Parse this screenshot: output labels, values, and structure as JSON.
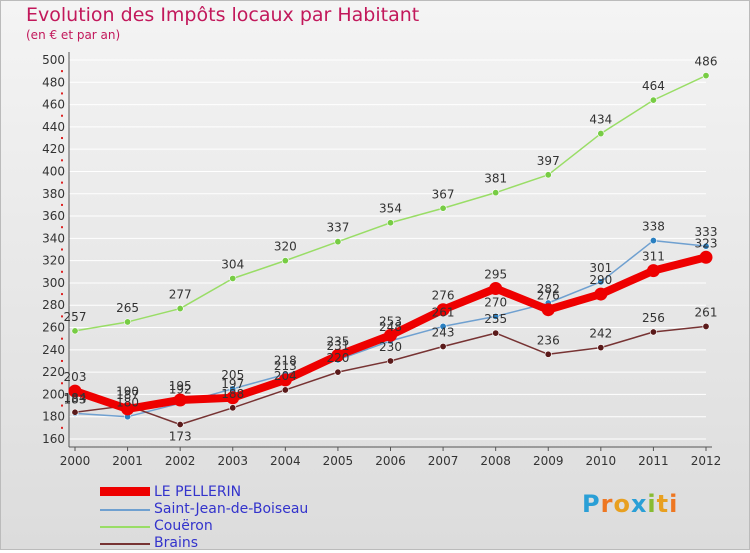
{
  "title": "Evolution des Impôts locaux par Habitant",
  "subtitle": "(en € et par an)",
  "logo_text": "Proxiti",
  "colors": {
    "title": "#c2185b",
    "legend_text": "#3333cc",
    "axis": "#555555"
  },
  "chart_data": {
    "type": "line",
    "x": [
      2000,
      2001,
      2002,
      2003,
      2004,
      2005,
      2006,
      2007,
      2008,
      2009,
      2010,
      2011,
      2012
    ],
    "categories": [
      "2000",
      "2001",
      "2002",
      "2003",
      "2004",
      "2005",
      "2006",
      "2007",
      "2008",
      "2009",
      "2010",
      "2011",
      "2012"
    ],
    "ylim": [
      160,
      500
    ],
    "yticks": [
      160,
      180,
      200,
      220,
      240,
      260,
      280,
      300,
      320,
      340,
      360,
      380,
      400,
      420,
      440,
      460,
      480,
      500
    ],
    "title": "Evolution des Impôts locaux par Habitant",
    "ylabel": "(en € et par an)",
    "legend_position": "bottom-left",
    "series": [
      {
        "name": "Saint-Jean-de-Boiseau",
        "color": "#6fa0d0",
        "marker": "#2a7fc0",
        "thick": false,
        "values": [
          183,
          180,
          192,
          205,
          218,
          231,
          248,
          261,
          270,
          282,
          301,
          338,
          333
        ]
      },
      {
        "name": "Couëron",
        "color": "#99dd66",
        "marker": "#77cc44",
        "thick": false,
        "values": [
          257,
          265,
          277,
          304,
          320,
          337,
          354,
          367,
          381,
          397,
          434,
          464,
          486
        ]
      },
      {
        "name": "Brains",
        "color": "#773333",
        "marker": "#5a1a1a",
        "thick": false,
        "values": [
          184,
          190,
          173,
          188,
          204,
          220,
          230,
          243,
          255,
          236,
          242,
          256,
          261
        ]
      },
      {
        "name": "LE PELLERIN",
        "color": "#ee0000",
        "marker": "#ee0000",
        "thick": true,
        "values": [
          203,
          187,
          195,
          197,
          213,
          235,
          253,
          276,
          295,
          276,
          290,
          311,
          323
        ]
      }
    ]
  },
  "legend": [
    {
      "label": "LE PELLERIN",
      "color": "#ee0000",
      "thick": true
    },
    {
      "label": "Saint-Jean-de-Boiseau",
      "color": "#6fa0d0",
      "thick": false
    },
    {
      "label": "Couëron",
      "color": "#99dd66",
      "thick": false
    },
    {
      "label": "Brains",
      "color": "#773333",
      "thick": false
    }
  ]
}
